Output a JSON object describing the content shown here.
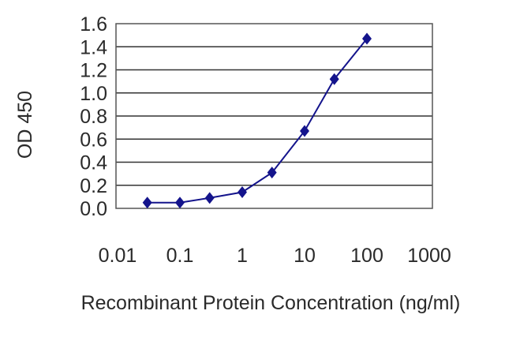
{
  "chart_data": {
    "type": "line",
    "title": "",
    "xlabel": "Recombinant Protein Concentration (ng/ml)",
    "ylabel": "OD 450",
    "x_scale": "log",
    "xlim": [
      0.01,
      1000
    ],
    "ylim": [
      0.0,
      1.6
    ],
    "x_tick_labels": [
      "0.01",
      "0.1",
      "1",
      "10",
      "100",
      "1000"
    ],
    "x_ticks": [
      0.01,
      0.1,
      1,
      10,
      100,
      1000
    ],
    "y_tick_labels": [
      "0.0",
      "0.2",
      "0.4",
      "0.6",
      "0.8",
      "1.0",
      "1.2",
      "1.4",
      "1.6"
    ],
    "y_ticks": [
      0.0,
      0.2,
      0.4,
      0.6,
      0.8,
      1.0,
      1.2,
      1.4,
      1.6
    ],
    "grid": "horizontal",
    "series": [
      {
        "marker": "diamond",
        "color": "#14148c",
        "x": [
          0.03,
          0.1,
          0.3,
          1,
          3,
          10,
          30,
          100
        ],
        "y": [
          0.05,
          0.05,
          0.09,
          0.14,
          0.31,
          0.67,
          1.12,
          1.47
        ]
      }
    ]
  }
}
